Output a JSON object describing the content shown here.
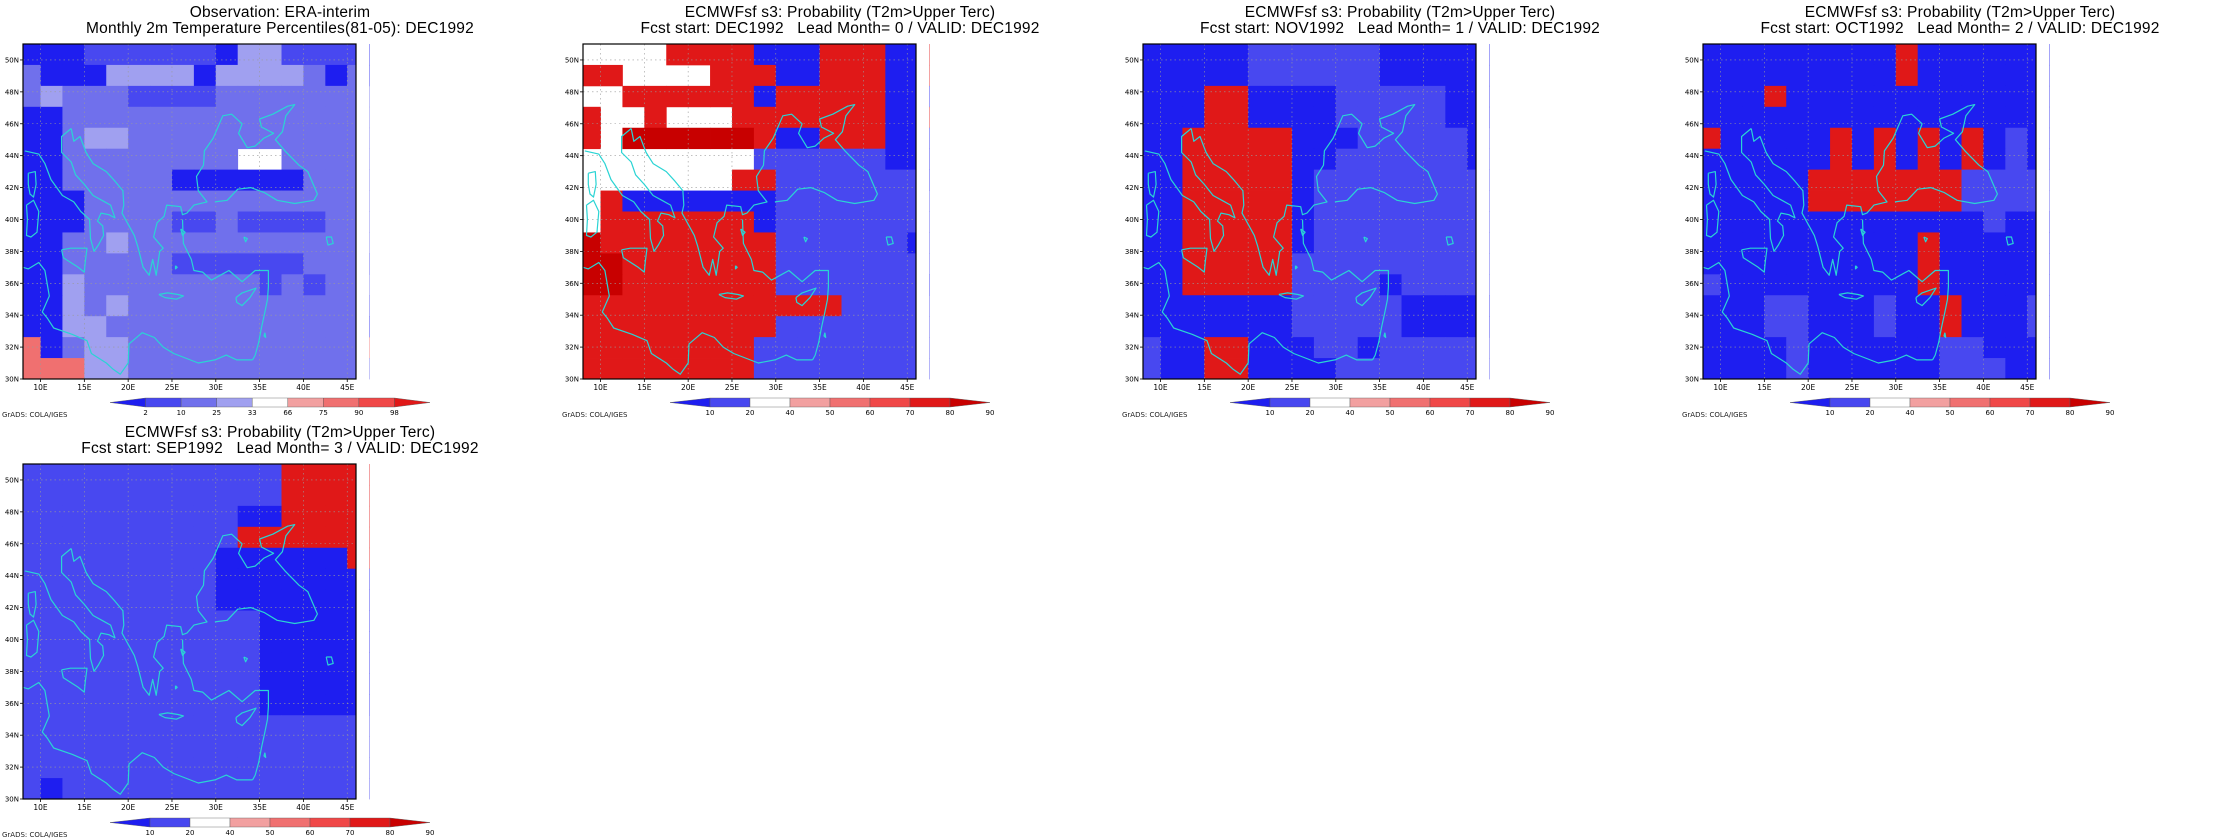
{
  "credit": "GrADS: COLA/IGES",
  "map": {
    "lon_min": 8,
    "lon_max": 46,
    "lat_min": 30,
    "lat_max": 51,
    "lon_ticks": [
      "10E",
      "15E",
      "20E",
      "25E",
      "30E",
      "35E",
      "40E",
      "45E"
    ],
    "lat_ticks": [
      "30N",
      "32N",
      "34N",
      "36N",
      "38N",
      "40N",
      "42N",
      "44N",
      "46N",
      "48N",
      "50N"
    ],
    "coastline_color": "#2ad4d4",
    "grid_cell_deg": 2.5
  },
  "panels": [
    {
      "title1": "Observation: ERA-interim",
      "title2": "Monthly 2m Temperature Percentiles(81-05): DEC1992",
      "colorbar_labels": [
        "2",
        "10",
        "25",
        "33",
        "66",
        "75",
        "90",
        "98"
      ],
      "colorbar_colors": [
        "#1e1ef0",
        "#4848f0",
        "#7070ec",
        "#a0a0f0",
        "#ffffff",
        "#f2a0a0",
        "#f07070",
        "#f04848",
        "#e01818"
      ],
      "grid": [
        "00011111103311110",
        "20003333033332020",
        "23222111122222222",
        "00222222222222222",
        "00233222222222222",
        "00222222224422222",
        "00222220000002222",
        "00022222222222222",
        "00022221121111222",
        "00223222222222222",
        "00222221111112221",
        "00322222222121222",
        "00323222222222221",
        "00332222222222220",
        "60233222222222226",
        "66633222222222222"
      ]
    },
    {
      "title1": "ECMWFsf s3: Probability (T2m>Upper Terc)",
      "title2": "Fcst start: DEC1992   Lead Month= 0 / VALID: DEC1992",
      "colorbar_labels": [
        "10",
        "20",
        "40",
        "50",
        "60",
        "70",
        "80",
        "90"
      ],
      "colorbar_colors": [
        "#1e1ef0",
        "#4848f0",
        "#ffffff",
        "#f2a0a0",
        "#f07070",
        "#f04848",
        "#e01818",
        "#c80000"
      ],
      "grid": [
        "88886666000666006",
        "66888866600666006",
        "88666666066666000",
        "68868886666666006",
        "68777777600666000",
        "88888888111111000",
        "88888886611111110",
        "86000000011111111",
        "86666666011111111",
        "76666666611111101",
        "77666666611111111",
        "77666666611111110",
        "66666666666611111",
        "66666666611111111",
        "66666666111111111",
        "66666666111111111"
      ]
    },
    {
      "title1": "ECMWFsf s3: Probability (T2m>Upper Terc)",
      "title2": "Fcst start: NOV1992   Lead Month= 1 / VALID: DEC1992",
      "colorbar_labels": [
        "10",
        "20",
        "40",
        "50",
        "60",
        "70",
        "80",
        "90"
      ],
      "colorbar_colors": [
        "#1e1ef0",
        "#4848f0",
        "#ffffff",
        "#f2a0a0",
        "#f07070",
        "#f04848",
        "#e01818",
        "#c80000"
      ],
      "grid": [
        "00000111111000000",
        "00000111111000000",
        "00066000011111000",
        "00066000011111000",
        "00666660001111101",
        "00666660011111101",
        "00666660111111111",
        "00666660111111111",
        "00666660111111111",
        "00666660111111111",
        "00666661111111111",
        "00666661111011111",
        "00000001111100000",
        "00000001111100000",
        "10066000110111111",
        "10066000011111111"
      ]
    },
    {
      "title1": "ECMWFsf s3: Probability (T2m>Upper Terc)",
      "title2": "Fcst start: OCT1992   Lead Month= 2 / VALID: DEC1992",
      "colorbar_labels": [
        "10",
        "20",
        "40",
        "50",
        "60",
        "70",
        "80",
        "90"
      ],
      "colorbar_colors": [
        "#1e1ef0",
        "#4848f0",
        "#ffffff",
        "#f2a0a0",
        "#f07070",
        "#f04848",
        "#e01818",
        "#c80000"
      ],
      "grid": [
        "00000000060000000",
        "00000000060000000",
        "00060000000000000",
        "00000000000000000",
        "60000060606060100",
        "00000060606060100",
        "00000666666611111",
        "00000666666611111",
        "00000000000001000",
        "00000000006000000",
        "00000000006000000",
        "10000000006000000",
        "00011000100600010",
        "00011000100600010",
        "00001000000110000",
        "00001000000111000"
      ]
    },
    {
      "title1": "ECMWFsf s3: Probability (T2m>Upper Terc)",
      "title2": "Fcst start: SEP1992   Lead Month= 3 / VALID: DEC1992",
      "colorbar_labels": [
        "10",
        "20",
        "40",
        "50",
        "60",
        "70",
        "80",
        "90"
      ],
      "colorbar_colors": [
        "#1e1ef0",
        "#4848f0",
        "#ffffff",
        "#f2a0a0",
        "#f07070",
        "#f04848",
        "#e01818",
        "#c80000"
      ],
      "grid": [
        "11111111111166666",
        "11111111111166666",
        "11111111110066666",
        "11111111116666666",
        "11111111100000066",
        "11111111100000000",
        "11111111100000000",
        "11111111111000000",
        "11111111111000000",
        "11111111111000000",
        "11111111111000000",
        "11111111111000000",
        "11111111111111111",
        "11111111111111111",
        "11111111111111111",
        "10111111111111111"
      ]
    }
  ]
}
